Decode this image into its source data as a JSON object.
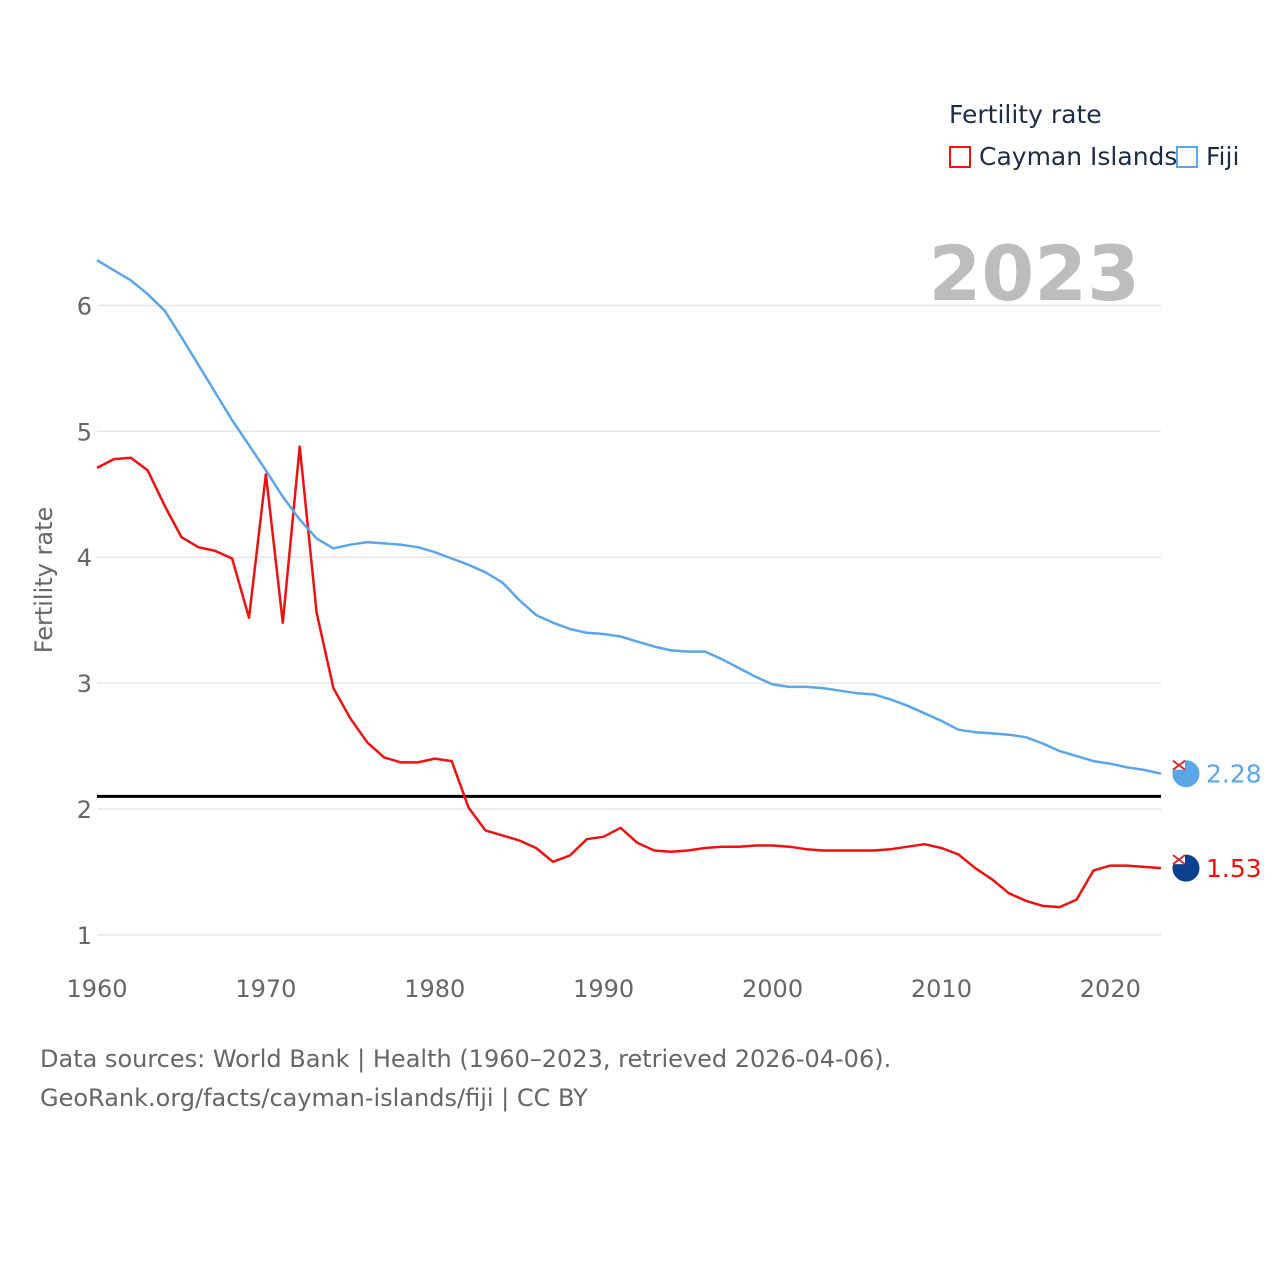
{
  "legend": {
    "title": "Fertility rate",
    "items": [
      {
        "label": "Cayman Islands",
        "color": "#ee1111"
      },
      {
        "label": "Fiji",
        "color": "#5ba6e9"
      }
    ]
  },
  "year_label": "2023",
  "footer": {
    "sources": "Data sources: World Bank | Health (1960–2023, retrieved 2026-04-06).",
    "attribution": "GeoRank.org/facts/cayman-islands/fiji | CC BY"
  },
  "chart_data": {
    "type": "line",
    "title": "Fertility rate",
    "ylabel": "Fertility rate",
    "xlabel": "",
    "xlim": [
      1960,
      2023
    ],
    "ylim": [
      0.8,
      6.6
    ],
    "x_ticks": [
      1960,
      1970,
      1980,
      1990,
      2000,
      2010,
      2020
    ],
    "y_ticks": [
      1,
      2,
      3,
      4,
      5,
      6
    ],
    "reference_line": {
      "y": 2.1,
      "color": "#000000"
    },
    "x": [
      1960,
      1961,
      1962,
      1963,
      1964,
      1965,
      1966,
      1967,
      1968,
      1969,
      1970,
      1971,
      1972,
      1973,
      1974,
      1975,
      1976,
      1977,
      1978,
      1979,
      1980,
      1981,
      1982,
      1983,
      1984,
      1985,
      1986,
      1987,
      1988,
      1989,
      1990,
      1991,
      1992,
      1993,
      1994,
      1995,
      1996,
      1997,
      1998,
      1999,
      2000,
      2001,
      2002,
      2003,
      2004,
      2005,
      2006,
      2007,
      2008,
      2009,
      2010,
      2011,
      2012,
      2013,
      2014,
      2015,
      2016,
      2017,
      2018,
      2019,
      2020,
      2021,
      2022,
      2023
    ],
    "series": [
      {
        "name": "Cayman Islands",
        "color": "#ee1111",
        "end_label": "1.53",
        "values": [
          4.71,
          4.78,
          4.79,
          4.69,
          4.41,
          4.16,
          4.08,
          4.05,
          3.99,
          3.52,
          4.66,
          3.48,
          4.88,
          3.56,
          2.96,
          2.72,
          2.53,
          2.41,
          2.37,
          2.37,
          2.4,
          2.38,
          2.01,
          1.83,
          1.79,
          1.75,
          1.69,
          1.58,
          1.63,
          1.76,
          1.78,
          1.85,
          1.73,
          1.67,
          1.66,
          1.67,
          1.69,
          1.7,
          1.7,
          1.71,
          1.71,
          1.7,
          1.68,
          1.67,
          1.67,
          1.67,
          1.67,
          1.68,
          1.7,
          1.72,
          1.69,
          1.64,
          1.53,
          1.44,
          1.33,
          1.27,
          1.23,
          1.22,
          1.28,
          1.51,
          1.55,
          1.55,
          1.54,
          1.53
        ]
      },
      {
        "name": "Fiji",
        "color": "#5ba6e9",
        "end_label": "2.28",
        "values": [
          6.36,
          6.28,
          6.2,
          6.09,
          5.96,
          5.75,
          5.53,
          5.31,
          5.09,
          4.89,
          4.69,
          4.48,
          4.3,
          4.15,
          4.07,
          4.1,
          4.12,
          4.11,
          4.1,
          4.08,
          4.04,
          3.99,
          3.94,
          3.88,
          3.8,
          3.66,
          3.54,
          3.48,
          3.43,
          3.4,
          3.39,
          3.37,
          3.33,
          3.29,
          3.26,
          3.25,
          3.25,
          3.19,
          3.12,
          3.05,
          2.99,
          2.97,
          2.97,
          2.96,
          2.94,
          2.92,
          2.91,
          2.87,
          2.82,
          2.76,
          2.7,
          2.63,
          2.61,
          2.6,
          2.59,
          2.57,
          2.52,
          2.46,
          2.42,
          2.38,
          2.36,
          2.33,
          2.31,
          2.28
        ]
      }
    ]
  }
}
